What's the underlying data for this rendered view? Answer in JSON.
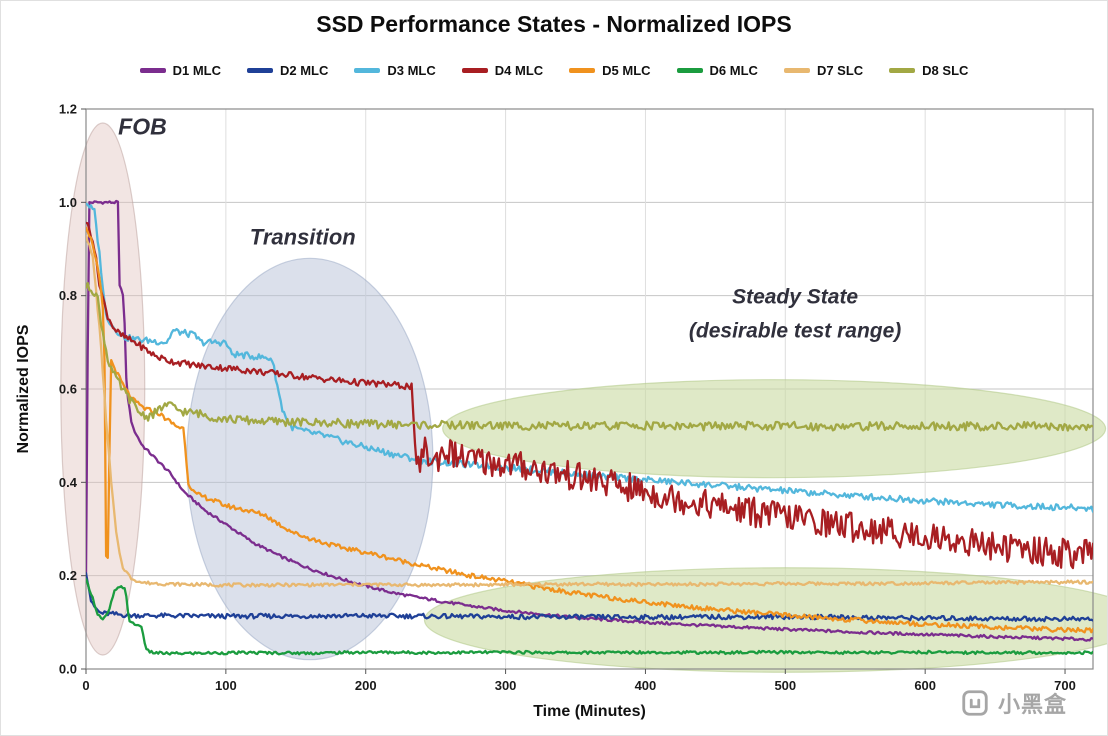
{
  "page": {
    "title": "SSD Performance States - Normalized IOPS",
    "watermark": "小黑盒"
  },
  "chart_data": {
    "type": "line",
    "title": "SSD Performance States - Normalized IOPS",
    "xlabel": "Time (Minutes)",
    "ylabel": "Normalized IOPS",
    "xlim": [
      0,
      720
    ],
    "ylim": [
      0,
      1.2
    ],
    "xticks": [
      0,
      100,
      200,
      300,
      400,
      500,
      600,
      700
    ],
    "yticks": [
      0,
      0.2,
      0.4,
      0.6,
      0.8,
      1.0,
      1.2
    ],
    "grid": true,
    "legend_position": "top",
    "annotations": [
      {
        "text": "FOB",
        "x": 23,
        "y": 1.145,
        "anchor": "start",
        "size": 23
      },
      {
        "text": "Transition",
        "x": 155,
        "y": 0.91,
        "size": 22
      },
      {
        "text": "Steady State",
        "x": 507,
        "y": 0.783,
        "size": 21
      },
      {
        "text": "(desirable test range)",
        "x": 507,
        "y": 0.71,
        "size": 21
      }
    ],
    "regions": [
      {
        "name": "fob",
        "cx": 12,
        "cy": 0.6,
        "rx": 30,
        "ry": 0.57,
        "fill": "#dfc0bd",
        "opacity": 0.42,
        "stroke": "#c0a6a3"
      },
      {
        "name": "transition",
        "cx": 160,
        "cy": 0.45,
        "rx": 88,
        "ry": 0.43,
        "fill": "#b7c2d8",
        "opacity": 0.5,
        "stroke": "#9dabc6"
      },
      {
        "name": "steady-state-upper",
        "cx": 492,
        "cy": 0.515,
        "rx": 237,
        "ry": 0.105,
        "fill": "#c9dba2",
        "opacity": 0.6,
        "stroke": "#b0c887"
      },
      {
        "name": "steady-state-lower",
        "cx": 500,
        "cy": 0.105,
        "rx": 258,
        "ry": 0.112,
        "fill": "#c9dba2",
        "opacity": 0.6,
        "stroke": "#b0c887"
      }
    ],
    "series": [
      {
        "name": "D1 MLC",
        "color": "#7b2d8e",
        "noise": 0.003,
        "points": [
          [
            0,
            0.2
          ],
          [
            2,
            1.0
          ],
          [
            23,
            1.0
          ],
          [
            24,
            0.82
          ],
          [
            27,
            0.8
          ],
          [
            29,
            0.6
          ],
          [
            33,
            0.52
          ],
          [
            40,
            0.48
          ],
          [
            50,
            0.45
          ],
          [
            60,
            0.42
          ],
          [
            70,
            0.38
          ],
          [
            85,
            0.34
          ],
          [
            100,
            0.31
          ],
          [
            120,
            0.27
          ],
          [
            140,
            0.24
          ],
          [
            160,
            0.215
          ],
          [
            180,
            0.195
          ],
          [
            200,
            0.178
          ],
          [
            220,
            0.163
          ],
          [
            240,
            0.152
          ],
          [
            260,
            0.142
          ],
          [
            280,
            0.133
          ],
          [
            300,
            0.125
          ],
          [
            350,
            0.11
          ],
          [
            400,
            0.1
          ],
          [
            450,
            0.092
          ],
          [
            500,
            0.085
          ],
          [
            550,
            0.079
          ],
          [
            600,
            0.074
          ],
          [
            650,
            0.069
          ],
          [
            700,
            0.065
          ],
          [
            720,
            0.063
          ]
        ]
      },
      {
        "name": "D2 MLC",
        "color": "#1f4097",
        "noise": 0.005,
        "points": [
          [
            0,
            0.21
          ],
          [
            4,
            0.14
          ],
          [
            10,
            0.12
          ],
          [
            30,
            0.115
          ],
          [
            100,
            0.113
          ],
          [
            200,
            0.114
          ],
          [
            300,
            0.112
          ],
          [
            400,
            0.111
          ],
          [
            500,
            0.112
          ],
          [
            600,
            0.109
          ],
          [
            700,
            0.107
          ],
          [
            720,
            0.107
          ]
        ]
      },
      {
        "name": "D3 MLC",
        "color": "#53b7dc",
        "noise": 0.007,
        "points": [
          [
            0,
            1.0
          ],
          [
            6,
            0.98
          ],
          [
            10,
            0.88
          ],
          [
            14,
            0.76
          ],
          [
            20,
            0.73
          ],
          [
            28,
            0.71
          ],
          [
            40,
            0.705
          ],
          [
            58,
            0.7
          ],
          [
            62,
            0.725
          ],
          [
            78,
            0.715
          ],
          [
            82,
            0.7
          ],
          [
            100,
            0.7
          ],
          [
            104,
            0.675
          ],
          [
            120,
            0.67
          ],
          [
            133,
            0.665
          ],
          [
            140,
            0.56
          ],
          [
            146,
            0.52
          ],
          [
            155,
            0.51
          ],
          [
            170,
            0.5
          ],
          [
            185,
            0.487
          ],
          [
            200,
            0.475
          ],
          [
            220,
            0.46
          ],
          [
            240,
            0.447
          ],
          [
            265,
            0.44
          ],
          [
            290,
            0.434
          ],
          [
            320,
            0.427
          ],
          [
            350,
            0.418
          ],
          [
            380,
            0.41
          ],
          [
            410,
            0.403
          ],
          [
            440,
            0.396
          ],
          [
            470,
            0.389
          ],
          [
            500,
            0.382
          ],
          [
            530,
            0.375
          ],
          [
            560,
            0.369
          ],
          [
            590,
            0.363
          ],
          [
            620,
            0.357
          ],
          [
            650,
            0.352
          ],
          [
            680,
            0.348
          ],
          [
            700,
            0.346
          ],
          [
            720,
            0.344
          ]
        ]
      },
      {
        "name": "D4 MLC",
        "color": "#a81e22",
        "noise_segments": [
          {
            "from": 0,
            "amp": 0.007
          },
          {
            "from": 237,
            "amp": 0.032
          }
        ],
        "points": [
          [
            0,
            0.96
          ],
          [
            5,
            0.92
          ],
          [
            10,
            0.82
          ],
          [
            15,
            0.76
          ],
          [
            20,
            0.73
          ],
          [
            25,
            0.715
          ],
          [
            35,
            0.7
          ],
          [
            50,
            0.67
          ],
          [
            60,
            0.66
          ],
          [
            80,
            0.65
          ],
          [
            100,
            0.645
          ],
          [
            130,
            0.635
          ],
          [
            160,
            0.625
          ],
          [
            190,
            0.615
          ],
          [
            215,
            0.61
          ],
          [
            233,
            0.605
          ],
          [
            236,
            0.43
          ],
          [
            242,
            0.47
          ],
          [
            248,
            0.44
          ],
          [
            256,
            0.47
          ],
          [
            270,
            0.45
          ],
          [
            290,
            0.443
          ],
          [
            310,
            0.436
          ],
          [
            330,
            0.424
          ],
          [
            350,
            0.412
          ],
          [
            370,
            0.4
          ],
          [
            390,
            0.387
          ],
          [
            410,
            0.373
          ],
          [
            430,
            0.361
          ],
          [
            450,
            0.35
          ],
          [
            470,
            0.34
          ],
          [
            490,
            0.331
          ],
          [
            510,
            0.322
          ],
          [
            530,
            0.313
          ],
          [
            550,
            0.304
          ],
          [
            570,
            0.296
          ],
          [
            590,
            0.288
          ],
          [
            610,
            0.281
          ],
          [
            630,
            0.272
          ],
          [
            650,
            0.263
          ],
          [
            670,
            0.256
          ],
          [
            690,
            0.25
          ],
          [
            710,
            0.246
          ],
          [
            720,
            0.244
          ]
        ]
      },
      {
        "name": "D5 MLC",
        "color": "#f0921e",
        "noise": 0.005,
        "points": [
          [
            0,
            0.95
          ],
          [
            5,
            0.91
          ],
          [
            10,
            0.83
          ],
          [
            13,
            0.74
          ],
          [
            14,
            0.35
          ],
          [
            15,
            0.07
          ],
          [
            16,
            0.35
          ],
          [
            18,
            0.66
          ],
          [
            22,
            0.635
          ],
          [
            28,
            0.6
          ],
          [
            34,
            0.575
          ],
          [
            42,
            0.558
          ],
          [
            52,
            0.548
          ],
          [
            60,
            0.53
          ],
          [
            65,
            0.52
          ],
          [
            70,
            0.515
          ],
          [
            73,
            0.4
          ],
          [
            78,
            0.375
          ],
          [
            88,
            0.365
          ],
          [
            100,
            0.35
          ],
          [
            115,
            0.34
          ],
          [
            128,
            0.33
          ],
          [
            138,
            0.31
          ],
          [
            150,
            0.29
          ],
          [
            165,
            0.275
          ],
          [
            180,
            0.262
          ],
          [
            200,
            0.25
          ],
          [
            225,
            0.232
          ],
          [
            250,
            0.215
          ],
          [
            275,
            0.2
          ],
          [
            300,
            0.188
          ],
          [
            330,
            0.172
          ],
          [
            360,
            0.158
          ],
          [
            390,
            0.147
          ],
          [
            420,
            0.137
          ],
          [
            450,
            0.128
          ],
          [
            480,
            0.12
          ],
          [
            510,
            0.113
          ],
          [
            540,
            0.107
          ],
          [
            570,
            0.101
          ],
          [
            600,
            0.096
          ],
          [
            630,
            0.092
          ],
          [
            660,
            0.088
          ],
          [
            690,
            0.085
          ],
          [
            720,
            0.082
          ]
        ]
      },
      {
        "name": "D6 MLC",
        "color": "#1b9c3f",
        "noise": 0.003,
        "points": [
          [
            0,
            0.19
          ],
          [
            4,
            0.16
          ],
          [
            8,
            0.12
          ],
          [
            12,
            0.105
          ],
          [
            16,
            0.12
          ],
          [
            20,
            0.165
          ],
          [
            24,
            0.175
          ],
          [
            28,
            0.175
          ],
          [
            31,
            0.1
          ],
          [
            36,
            0.095
          ],
          [
            40,
            0.09
          ],
          [
            43,
            0.04
          ],
          [
            48,
            0.035
          ],
          [
            60,
            0.033
          ],
          [
            80,
            0.034
          ],
          [
            120,
            0.035
          ],
          [
            160,
            0.034
          ],
          [
            200,
            0.036
          ],
          [
            250,
            0.035
          ],
          [
            300,
            0.036
          ],
          [
            350,
            0.035
          ],
          [
            400,
            0.036
          ],
          [
            450,
            0.035
          ],
          [
            500,
            0.036
          ],
          [
            550,
            0.035
          ],
          [
            600,
            0.036
          ],
          [
            650,
            0.035
          ],
          [
            700,
            0.035
          ],
          [
            720,
            0.035
          ]
        ]
      },
      {
        "name": "D7 SLC",
        "color": "#e8b870",
        "noise": 0.0035,
        "points": [
          [
            0,
            0.93
          ],
          [
            5,
            0.88
          ],
          [
            10,
            0.72
          ],
          [
            14,
            0.55
          ],
          [
            18,
            0.4
          ],
          [
            22,
            0.28
          ],
          [
            26,
            0.22
          ],
          [
            32,
            0.195
          ],
          [
            40,
            0.185
          ],
          [
            60,
            0.182
          ],
          [
            100,
            0.18
          ],
          [
            150,
            0.18
          ],
          [
            200,
            0.181
          ],
          [
            250,
            0.18
          ],
          [
            300,
            0.181
          ],
          [
            350,
            0.182
          ],
          [
            400,
            0.181
          ],
          [
            450,
            0.182
          ],
          [
            500,
            0.183
          ],
          [
            550,
            0.183
          ],
          [
            600,
            0.184
          ],
          [
            650,
            0.185
          ],
          [
            700,
            0.186
          ],
          [
            720,
            0.186
          ]
        ]
      },
      {
        "name": "D8 SLC",
        "color": "#a2a844",
        "noise": 0.009,
        "points": [
          [
            0,
            0.82
          ],
          [
            4,
            0.815
          ],
          [
            8,
            0.8
          ],
          [
            12,
            0.72
          ],
          [
            16,
            0.66
          ],
          [
            20,
            0.63
          ],
          [
            26,
            0.6
          ],
          [
            32,
            0.575
          ],
          [
            38,
            0.55
          ],
          [
            44,
            0.54
          ],
          [
            50,
            0.55
          ],
          [
            56,
            0.565
          ],
          [
            60,
            0.565
          ],
          [
            66,
            0.555
          ],
          [
            72,
            0.55
          ],
          [
            80,
            0.548
          ],
          [
            90,
            0.54
          ],
          [
            100,
            0.536
          ],
          [
            120,
            0.532
          ],
          [
            140,
            0.53
          ],
          [
            160,
            0.528
          ],
          [
            180,
            0.527
          ],
          [
            200,
            0.525
          ],
          [
            240,
            0.523
          ],
          [
            280,
            0.522
          ],
          [
            320,
            0.521
          ],
          [
            360,
            0.52
          ],
          [
            400,
            0.522
          ],
          [
            440,
            0.52
          ],
          [
            480,
            0.521
          ],
          [
            520,
            0.52
          ],
          [
            560,
            0.52
          ],
          [
            600,
            0.521
          ],
          [
            640,
            0.52
          ],
          [
            680,
            0.52
          ],
          [
            720,
            0.52
          ]
        ]
      }
    ]
  }
}
